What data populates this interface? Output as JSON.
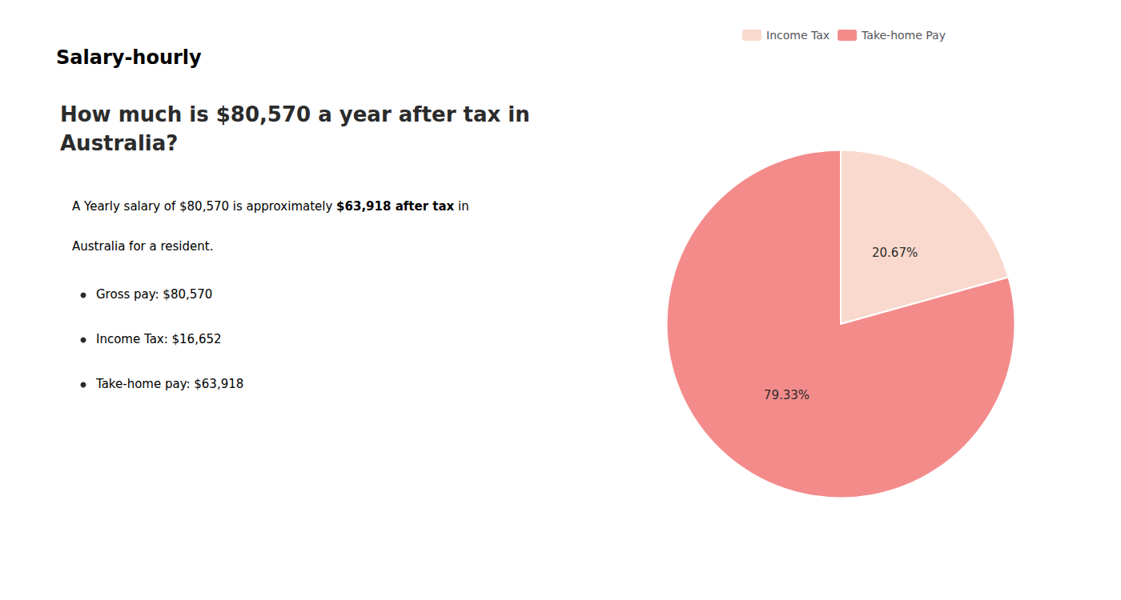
{
  "chart_data": {
    "type": "pie",
    "title": "How much is $80,570 a year after tax in\nAustralia?",
    "categories": [
      "Income Tax",
      "Take-home Pay"
    ],
    "values": [
      20.67,
      79.33
    ],
    "value_labels": [
      "20.67%",
      "79.33%"
    ],
    "colors": [
      "#f9d9ce",
      "#f48b8b"
    ],
    "data_labels": true,
    "legend": "top",
    "annotations": [
      [
        {
          "text": "S",
          "color": "#cc1111"
        },
        {
          "text": "alary-hourly"
        }
      ],
      [
        {
          "text": "A Yearly salary of $80,570 is approximately "
        },
        {
          "text": "$63,918 after tax",
          "color": "#cc0000"
        },
        {
          "text": " in"
        }
      ],
      [
        {
          "text": "Australia for a resident."
        }
      ],
      [
        {
          "text": "Gross pay: $80,570"
        }
      ],
      [
        {
          "text": "Income Tax: $16,652"
        }
      ],
      [
        {
          "text": "Take-home pay: $63,918"
        }
      ]
    ]
  }
}
